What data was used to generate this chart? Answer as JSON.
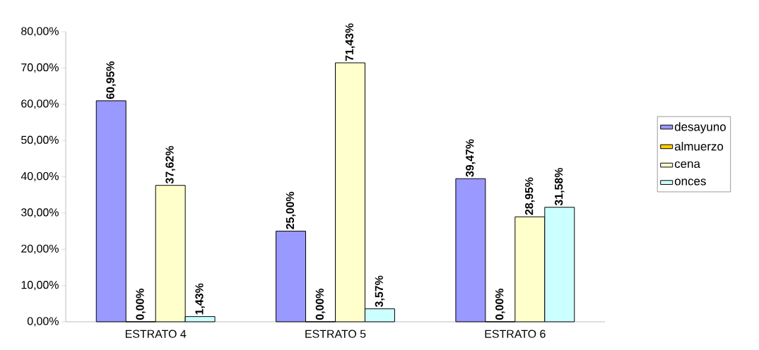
{
  "chart_data": {
    "type": "bar",
    "categories": [
      "ESTRATO 4",
      "ESTRATO 5",
      "ESTRATO 6"
    ],
    "series": [
      {
        "name": "desayuno",
        "color": "#9999ff",
        "values": [
          60.95,
          25.0,
          39.47
        ],
        "value_labels": [
          "60,95%",
          "25,00%",
          "39,47%"
        ]
      },
      {
        "name": "almuerzo",
        "color": "#ffcc00",
        "values": [
          0.0,
          0.0,
          0.0
        ],
        "value_labels": [
          "0,00%",
          "0,00%",
          "0,00%"
        ]
      },
      {
        "name": "cena",
        "color": "#ffffcc",
        "values": [
          37.62,
          71.43,
          28.95
        ],
        "value_labels": [
          "37,62%",
          "71,43%",
          "28,95%"
        ]
      },
      {
        "name": "onces",
        "color": "#ccffff",
        "values": [
          1.43,
          3.57,
          31.58
        ],
        "value_labels": [
          "1,43%",
          "3,57%",
          "31,58%"
        ]
      }
    ],
    "ylim": [
      0,
      80
    ],
    "yticks": [
      {
        "value": 0,
        "label": "0,00%"
      },
      {
        "value": 10,
        "label": "10,00%"
      },
      {
        "value": 20,
        "label": "20,00%"
      },
      {
        "value": 30,
        "label": "30,00%"
      },
      {
        "value": 40,
        "label": "40,00%"
      },
      {
        "value": 50,
        "label": "50,00%"
      },
      {
        "value": 60,
        "label": "60,00%"
      },
      {
        "value": 70,
        "label": "70,00%"
      },
      {
        "value": 80,
        "label": "80,00%"
      }
    ],
    "grid": false,
    "legend": "right"
  }
}
